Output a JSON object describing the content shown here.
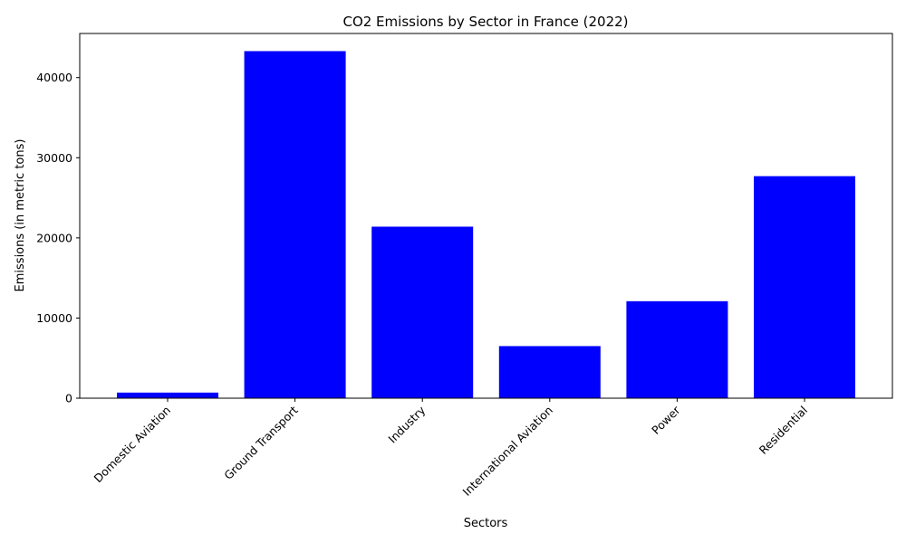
{
  "chart_data": {
    "type": "bar",
    "title": "CO2 Emissions by Sector in France (2022)",
    "xlabel": "Sectors",
    "ylabel": "Emissions (in metric tons)",
    "categories": [
      "Domestic Aviation",
      "Ground Transport",
      "Industry",
      "International Aviation",
      "Power",
      "Residential"
    ],
    "values": [
      700,
      43300,
      21400,
      6500,
      12100,
      27700
    ],
    "ylim": [
      0,
      45500
    ],
    "yticks": [
      0,
      10000,
      20000,
      30000,
      40000
    ],
    "bar_color": "#0000ff",
    "grid": false,
    "legend": false
  }
}
